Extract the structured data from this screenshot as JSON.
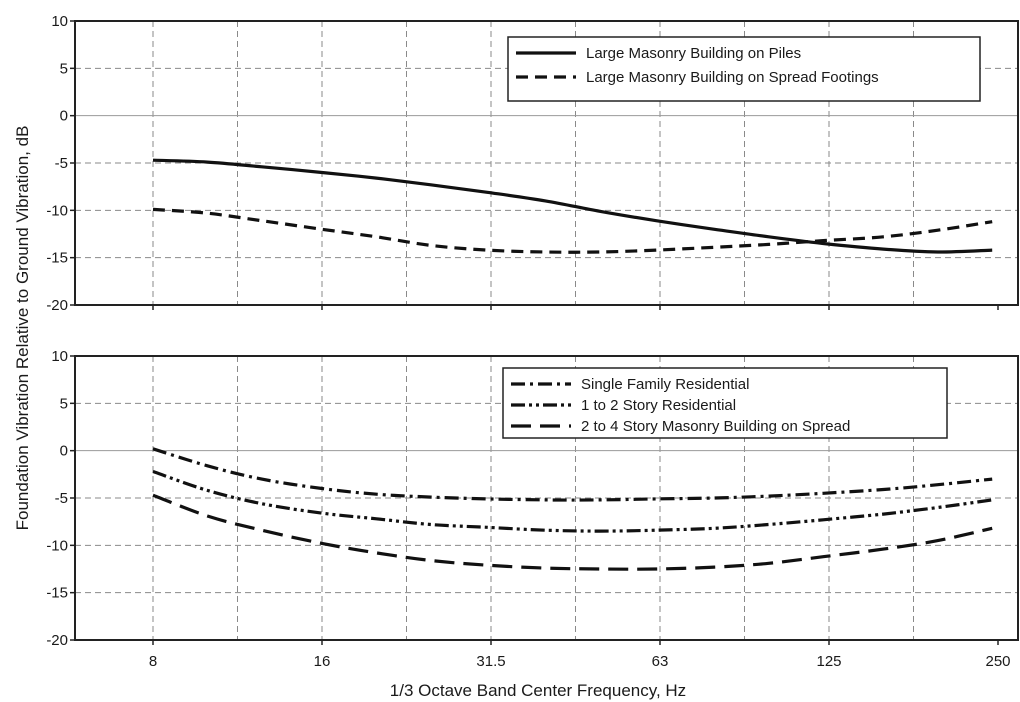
{
  "chart_data": {
    "type": "line",
    "xlabel": "1/3 Octave Band Center Frequency, Hz",
    "ylabel": "Foundation Vibration Relative to Ground Vibration, dB",
    "x_ticks": [
      "8",
      "16",
      "31.5",
      "63",
      "125",
      "250"
    ],
    "x_scale": "log2",
    "grid": true,
    "colors": {
      "line": "#111111",
      "grid": "#8a8a8a",
      "zero_line": "#9a9a9a"
    },
    "panels": [
      {
        "ylim": [
          -20,
          10
        ],
        "y_ticks": [
          10,
          5,
          0,
          -5,
          -10,
          -15,
          -20
        ],
        "legend_position": "top-right",
        "series": [
          {
            "name": "Large Masonry Building on Piles",
            "style": "solid",
            "x": [
              8,
              10,
              12.5,
              16,
              20,
              25,
              31.5,
              40,
              50,
              63,
              80,
              100,
              125,
              160,
              200,
              250
            ],
            "y": [
              -4.7,
              -4.9,
              -5.4,
              -6.0,
              -6.6,
              -7.3,
              -8.1,
              -9.0,
              -10.1,
              -11.1,
              -12.0,
              -12.8,
              -13.5,
              -14.1,
              -14.4,
              -14.2
            ]
          },
          {
            "name": "Large Masonry Building on Spread Footings",
            "style": "dashed",
            "x": [
              8,
              10,
              12.5,
              16,
              20,
              25,
              31.5,
              40,
              50,
              63,
              80,
              100,
              125,
              160,
              200,
              250
            ],
            "y": [
              -9.9,
              -10.3,
              -11.1,
              -12.0,
              -12.8,
              -13.7,
              -14.2,
              -14.4,
              -14.4,
              -14.2,
              -13.9,
              -13.6,
              -13.2,
              -12.8,
              -12.1,
              -11.2
            ]
          }
        ]
      },
      {
        "ylim": [
          -20,
          10
        ],
        "y_ticks": [
          10,
          5,
          0,
          -5,
          -10,
          -15,
          -20
        ],
        "legend_position": "top-right",
        "series": [
          {
            "name": "Single Family Residential",
            "style": "dash-dot",
            "x": [
              8,
              10,
              12.5,
              16,
              20,
              25,
              31.5,
              40,
              50,
              63,
              80,
              100,
              125,
              160,
              200,
              250
            ],
            "y": [
              0.2,
              -1.6,
              -3.0,
              -4.0,
              -4.6,
              -4.9,
              -5.1,
              -5.2,
              -5.2,
              -5.1,
              -5.0,
              -4.8,
              -4.5,
              -4.1,
              -3.6,
              -3.0
            ]
          },
          {
            "name": "1 to 2 Story Residential",
            "style": "dash-dot-dot",
            "x": [
              8,
              10,
              12.5,
              16,
              20,
              25,
              31.5,
              40,
              50,
              63,
              80,
              100,
              125,
              160,
              200,
              250
            ],
            "y": [
              -2.2,
              -4.2,
              -5.6,
              -6.6,
              -7.2,
              -7.8,
              -8.1,
              -8.4,
              -8.5,
              -8.4,
              -8.2,
              -7.8,
              -7.3,
              -6.7,
              -6.0,
              -5.2
            ]
          },
          {
            "name": "2 to 4 Story Masonry Building on Spread",
            "style": "long-dash",
            "x": [
              8,
              10,
              12.5,
              16,
              20,
              25,
              31.5,
              40,
              50,
              63,
              80,
              100,
              125,
              160,
              200,
              250
            ],
            "y": [
              -4.7,
              -6.9,
              -8.4,
              -9.8,
              -10.8,
              -11.6,
              -12.1,
              -12.4,
              -12.5,
              -12.5,
              -12.3,
              -11.9,
              -11.2,
              -10.4,
              -9.5,
              -8.2
            ]
          }
        ]
      }
    ]
  }
}
